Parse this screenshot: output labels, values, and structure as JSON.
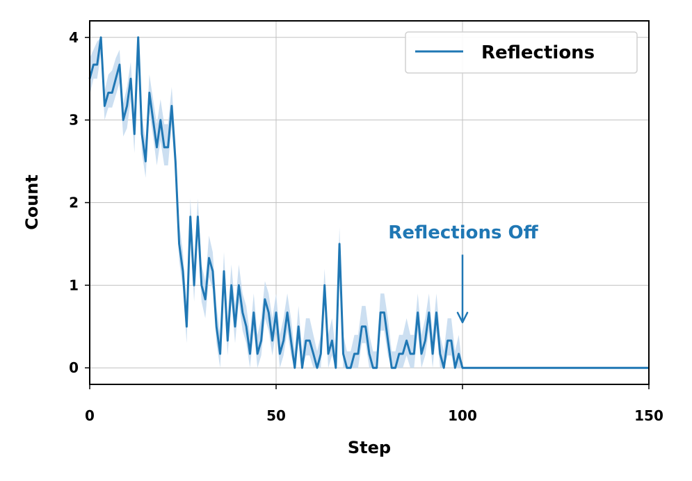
{
  "chart_data": {
    "type": "line",
    "xlabel": "Step",
    "ylabel": "Count",
    "xlim": [
      0,
      150
    ],
    "ylim": [
      -0.2,
      4.2
    ],
    "xticks": [
      "0",
      "50",
      "100",
      "150"
    ],
    "yticks": [
      "0",
      "1",
      "2",
      "3",
      "4"
    ],
    "grid": true,
    "legend_position": "top-right",
    "colors": {
      "line": "#1f77b4",
      "band": "#c6dbef",
      "grid": "#c0c0c0"
    },
    "series": [
      {
        "name": "Reflections",
        "x": [
          0,
          1,
          2,
          3,
          4,
          5,
          6,
          7,
          8,
          9,
          10,
          11,
          12,
          13,
          14,
          15,
          16,
          17,
          18,
          19,
          20,
          21,
          22,
          23,
          24,
          25,
          26,
          27,
          28,
          29,
          30,
          31,
          32,
          33,
          34,
          35,
          36,
          37,
          38,
          39,
          40,
          41,
          42,
          43,
          44,
          45,
          46,
          47,
          48,
          49,
          50,
          51,
          52,
          53,
          54,
          55,
          56,
          57,
          58,
          59,
          60,
          61,
          62,
          63,
          64,
          65,
          66,
          67,
          68,
          69,
          70,
          71,
          72,
          73,
          74,
          75,
          76,
          77,
          78,
          79,
          80,
          81,
          82,
          83,
          84,
          85,
          86,
          87,
          88,
          89,
          90,
          91,
          92,
          93,
          94,
          95,
          96,
          97,
          98,
          99,
          100,
          150
        ],
        "y": [
          3.5,
          3.67,
          3.67,
          4.0,
          3.17,
          3.33,
          3.33,
          3.5,
          3.67,
          3.0,
          3.17,
          3.5,
          2.83,
          4.0,
          2.83,
          2.5,
          3.33,
          3.0,
          2.67,
          3.0,
          2.67,
          2.67,
          3.17,
          2.5,
          1.5,
          1.17,
          0.5,
          1.83,
          1.0,
          1.83,
          1.0,
          0.83,
          1.33,
          1.17,
          0.5,
          0.17,
          1.17,
          0.33,
          1.0,
          0.5,
          1.0,
          0.67,
          0.5,
          0.17,
          0.67,
          0.17,
          0.33,
          0.83,
          0.67,
          0.33,
          0.67,
          0.17,
          0.33,
          0.67,
          0.33,
          0.0,
          0.5,
          0.0,
          0.33,
          0.33,
          0.17,
          0.0,
          0.17,
          1.0,
          0.17,
          0.33,
          0.0,
          1.5,
          0.17,
          0.0,
          0.0,
          0.17,
          0.17,
          0.5,
          0.5,
          0.17,
          0.0,
          0.0,
          0.67,
          0.67,
          0.33,
          0.0,
          0.0,
          0.17,
          0.17,
          0.33,
          0.17,
          0.17,
          0.67,
          0.17,
          0.33,
          0.67,
          0.17,
          0.67,
          0.17,
          0.0,
          0.33,
          0.33,
          0.0,
          0.17,
          0.0,
          0.0
        ],
        "y_lower": [
          3.3,
          3.5,
          3.5,
          3.8,
          3.0,
          3.15,
          3.15,
          3.3,
          3.45,
          2.8,
          2.9,
          3.25,
          2.6,
          3.8,
          2.6,
          2.3,
          3.1,
          2.8,
          2.45,
          2.75,
          2.45,
          2.45,
          2.95,
          2.3,
          1.3,
          0.95,
          0.3,
          1.6,
          0.8,
          1.6,
          0.8,
          0.6,
          1.1,
          0.95,
          0.3,
          0.0,
          0.95,
          0.15,
          0.8,
          0.3,
          0.8,
          0.45,
          0.3,
          0.0,
          0.45,
          0.0,
          0.15,
          0.6,
          0.45,
          0.15,
          0.45,
          0.0,
          0.15,
          0.45,
          0.15,
          0.0,
          0.3,
          0.0,
          0.15,
          0.15,
          0.0,
          0.0,
          0.0,
          0.8,
          0.0,
          0.15,
          0.0,
          1.3,
          0.0,
          0.0,
          0.0,
          0.0,
          0.0,
          0.3,
          0.3,
          0.0,
          0.0,
          0.0,
          0.45,
          0.45,
          0.15,
          0.0,
          0.0,
          0.0,
          0.0,
          0.15,
          0.0,
          0.0,
          0.45,
          0.0,
          0.15,
          0.45,
          0.0,
          0.45,
          0.0,
          0.0,
          0.15,
          0.15,
          0.0,
          0.0,
          0.0,
          0.0
        ],
        "y_upper": [
          3.75,
          3.85,
          3.95,
          4.0,
          3.35,
          3.55,
          3.6,
          3.75,
          3.85,
          3.2,
          3.4,
          3.7,
          3.05,
          4.0,
          3.05,
          2.75,
          3.55,
          3.25,
          2.95,
          3.25,
          2.95,
          2.95,
          3.4,
          2.75,
          1.75,
          1.4,
          0.75,
          2.05,
          1.25,
          2.05,
          1.25,
          1.05,
          1.6,
          1.4,
          0.75,
          0.4,
          1.4,
          0.6,
          1.25,
          0.75,
          1.25,
          0.9,
          0.75,
          0.4,
          0.9,
          0.4,
          0.6,
          1.05,
          0.9,
          0.6,
          0.9,
          0.4,
          0.6,
          0.9,
          0.6,
          0.2,
          0.75,
          0.2,
          0.6,
          0.6,
          0.4,
          0.2,
          0.4,
          1.2,
          0.4,
          0.6,
          0.2,
          1.7,
          0.4,
          0.2,
          0.2,
          0.4,
          0.4,
          0.75,
          0.75,
          0.4,
          0.2,
          0.2,
          0.9,
          0.9,
          0.6,
          0.2,
          0.2,
          0.4,
          0.4,
          0.6,
          0.4,
          0.4,
          0.9,
          0.4,
          0.6,
          0.9,
          0.4,
          0.9,
          0.4,
          0.2,
          0.6,
          0.6,
          0.2,
          0.4,
          0.0,
          0.0
        ]
      }
    ],
    "annotation": {
      "text": "Reflections Off",
      "x": 100,
      "arrow_from_y": 1.37,
      "arrow_to_y": 0.55
    }
  }
}
